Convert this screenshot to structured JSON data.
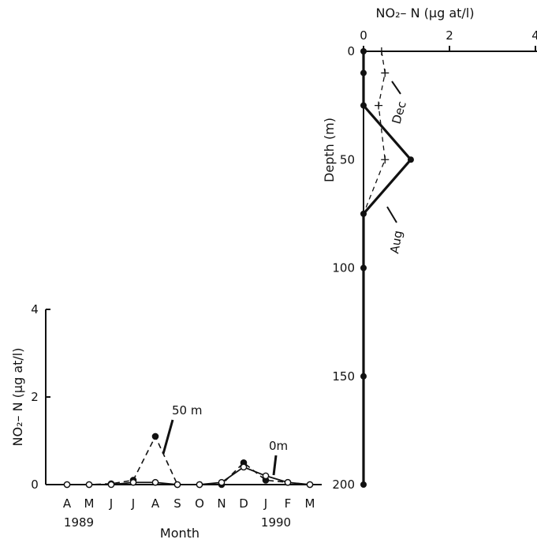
{
  "chart_data": [
    {
      "type": "line",
      "xlabel": "Month",
      "ylabel": "NO₂– N (µg at/l)",
      "ylim": [
        0,
        4
      ],
      "yticks": [
        "0",
        "2",
        "4"
      ],
      "categories": [
        "A",
        "M",
        "J",
        "J",
        "A",
        "S",
        "O",
        "N",
        "D",
        "J",
        "F",
        "M"
      ],
      "year_labels": [
        "1989",
        "1990"
      ],
      "grid": false,
      "series": [
        {
          "name": "50 m",
          "style": "dashed",
          "values": [
            0,
            0,
            0.02,
            0.1,
            1.1,
            0,
            0,
            0,
            0.5,
            0.1,
            0.05,
            0
          ]
        },
        {
          "name": "0m",
          "style": "solid",
          "values": [
            0,
            0,
            0,
            0.05,
            0.05,
            0,
            0,
            0.05,
            0.4,
            0.2,
            0.05,
            0
          ]
        }
      ]
    },
    {
      "type": "line",
      "orientation": "depth-profile",
      "xlabel": "NO₂– N (µg at/l)",
      "ylabel": "Depth (m)",
      "xlim": [
        0,
        4
      ],
      "xticks": [
        "0",
        "2",
        "4"
      ],
      "ylim": [
        0,
        200
      ],
      "yticks": [
        "0",
        "50",
        "100",
        "150",
        "200"
      ],
      "grid": false,
      "series": [
        {
          "name": "Aug",
          "style": "solid",
          "points": [
            {
              "x": 0,
              "depth": 0
            },
            {
              "x": 0,
              "depth": 10
            },
            {
              "x": 0,
              "depth": 25
            },
            {
              "x": 1.1,
              "depth": 50
            },
            {
              "x": 0,
              "depth": 75
            },
            {
              "x": 0,
              "depth": 100
            },
            {
              "x": 0,
              "depth": 150
            },
            {
              "x": 0,
              "depth": 200
            }
          ]
        },
        {
          "name": "Dec",
          "style": "dashed",
          "points": [
            {
              "x": 0.42,
              "depth": 0
            },
            {
              "x": 0.5,
              "depth": 10
            },
            {
              "x": 0.35,
              "depth": 25
            },
            {
              "x": 0.5,
              "depth": 50
            },
            {
              "x": 0,
              "depth": 75
            }
          ]
        }
      ]
    }
  ]
}
